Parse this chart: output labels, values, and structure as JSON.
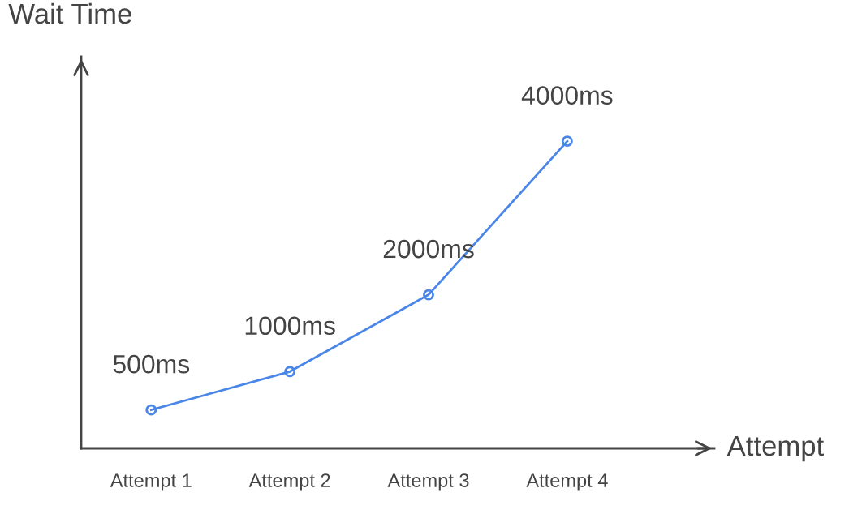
{
  "chart_data": {
    "type": "line",
    "xlabel": "Attempt",
    "ylabel": "Wait Time",
    "categories": [
      "Attempt 1",
      "Attempt 2",
      "Attempt 3",
      "Attempt 4"
    ],
    "series": [
      {
        "color": "#4a86e8",
        "values": [
          500,
          1000,
          2000,
          4000
        ],
        "value_labels": [
          "500ms",
          "1000ms",
          "2000ms",
          "4000ms"
        ]
      }
    ],
    "ylim": [
      0,
      5100
    ],
    "tick_labels": "x",
    "grid": false,
    "marker": "circle",
    "line_style": "solid"
  }
}
